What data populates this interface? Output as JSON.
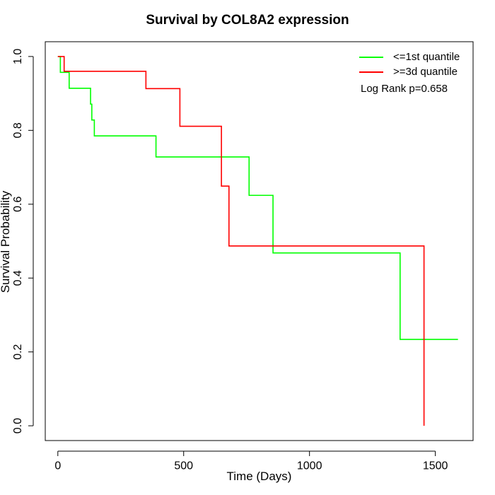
{
  "chart_data": {
    "type": "line",
    "title": "Survival by COL8A2 expression",
    "xlabel": "Time (Days)",
    "ylabel": "Survival Probability",
    "xlim": [
      -50,
      1650
    ],
    "ylim": [
      -0.04,
      1.04
    ],
    "xticks": [
      0,
      500,
      1000,
      1500
    ],
    "yticks": [
      0.0,
      0.2,
      0.4,
      0.6,
      0.8,
      1.0
    ],
    "xtick_labels": [
      "0",
      "500",
      "1000",
      "1500"
    ],
    "ytick_labels": [
      "0.0",
      "0.2",
      "0.4",
      "0.6",
      "0.8",
      "1.0"
    ],
    "legend_position": "top-right",
    "annotation": "Log Rank p=0.658",
    "series": [
      {
        "name": "<=1st quantile",
        "color": "#00ff00",
        "step_type": "post",
        "x": [
          0,
          10,
          45,
          130,
          135,
          145,
          390,
          760,
          855,
          1360,
          1590
        ],
        "y": [
          1.0,
          0.957,
          0.914,
          0.871,
          0.828,
          0.785,
          0.728,
          0.624,
          0.468,
          0.234,
          0.234
        ]
      },
      {
        "name": ">=3d quantile",
        "color": "#ff0000",
        "step_type": "post",
        "x": [
          0,
          25,
          350,
          485,
          650,
          680,
          1455,
          1455
        ],
        "y": [
          1.0,
          0.96,
          0.913,
          0.811,
          0.649,
          0.487,
          0.487,
          0.0
        ]
      }
    ]
  }
}
